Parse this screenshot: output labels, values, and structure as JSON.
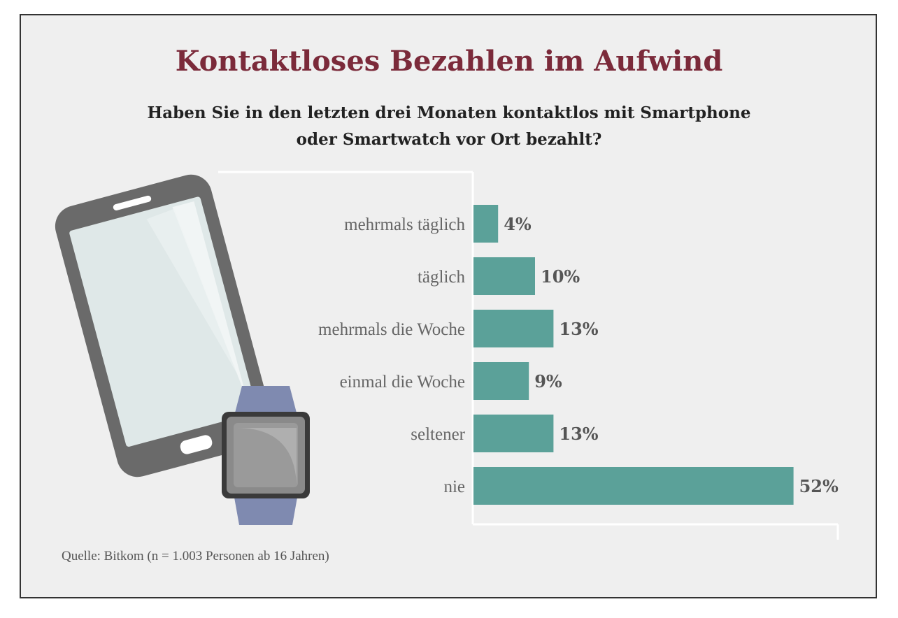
{
  "title": "Kontaktloses Bezahlen im Aufwind",
  "subtitle_lines": [
    "Haben Sie in den letzten drei Monaten kontaktlos mit Smartphone",
    "oder Smartwatch vor Ort bezahlt?"
  ],
  "source": "Quelle: Bitkom (n = 1.003 Personen ab 16 Jahren)",
  "colors": {
    "title": "#7b2a3a",
    "bar": "#5ba199",
    "phone_body": "#6a6a6a",
    "phone_screen": "#dfe8e8",
    "watch_band": "#7f8ab0",
    "watch_face": "#8a8a8a"
  },
  "illustration": {
    "icons": [
      "smartphone-icon",
      "smartwatch-icon"
    ]
  },
  "chart_data": {
    "type": "bar",
    "orientation": "horizontal",
    "categories": [
      "mehrmals täglich",
      "täglich",
      "mehrmals die Woche",
      "einmal die Woche",
      "seltener",
      "nie"
    ],
    "values": [
      4,
      10,
      13,
      9,
      13,
      52
    ],
    "value_labels": [
      "4%",
      "10%",
      "13%",
      "9%",
      "13%",
      "52%"
    ],
    "unit": "%",
    "xlim": [
      0,
      60
    ],
    "grid": false,
    "legend": "none"
  }
}
